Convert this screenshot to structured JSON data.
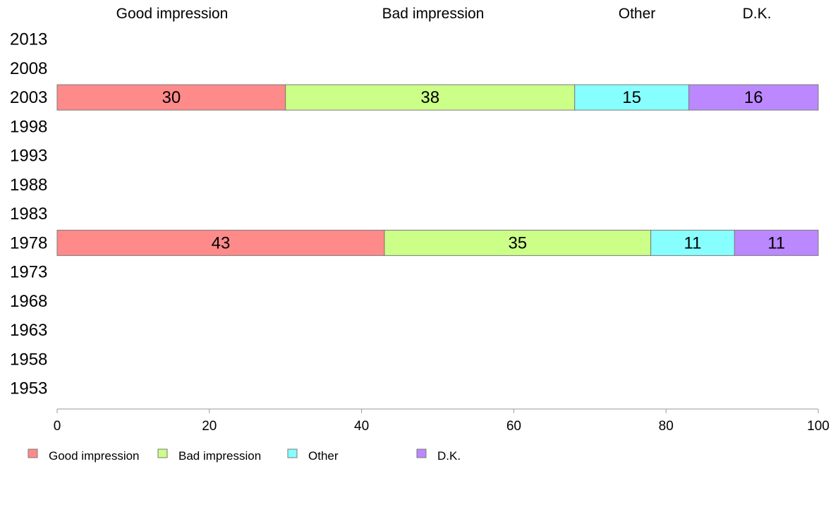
{
  "chart_data": {
    "type": "bar",
    "orientation": "horizontal",
    "stacked": true,
    "categories": [
      "2013",
      "2008",
      "2003",
      "1998",
      "1993",
      "1988",
      "1983",
      "1978",
      "1973",
      "1968",
      "1963",
      "1958",
      "1953"
    ],
    "series": [
      {
        "name": "Good impression",
        "color": "#ff8a8a",
        "values": [
          null,
          null,
          30,
          null,
          null,
          null,
          null,
          43,
          null,
          null,
          null,
          null,
          null
        ]
      },
      {
        "name": "Bad impression",
        "color": "#ccff88",
        "values": [
          null,
          null,
          38,
          null,
          null,
          null,
          null,
          35,
          null,
          null,
          null,
          null,
          null
        ]
      },
      {
        "name": "Other",
        "color": "#88ffff",
        "values": [
          null,
          null,
          15,
          null,
          null,
          null,
          null,
          11,
          null,
          null,
          null,
          null,
          null
        ]
      },
      {
        "name": "D.K.",
        "color": "#bb88ff",
        "values": [
          null,
          null,
          16,
          null,
          null,
          null,
          null,
          11,
          null,
          null,
          null,
          null,
          null
        ]
      }
    ],
    "xlim": [
      0,
      100
    ],
    "xticks": [
      "0",
      "20",
      "40",
      "60",
      "80",
      "100"
    ],
    "grid": false,
    "legend_position": "bottom-left",
    "column_headers": [
      "Good impression",
      "Bad impression",
      "Other",
      "D.K."
    ]
  }
}
